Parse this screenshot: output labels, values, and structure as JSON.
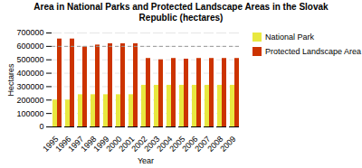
{
  "chart_data": {
    "type": "bar",
    "title": "Area in National Parks and Protected Landscape Areas in the Slovak\nRepublic (hectares)",
    "xlabel": "Year",
    "ylabel": "Hectares",
    "categories": [
      "1995",
      "1996",
      "1997",
      "1998",
      "1999",
      "2000",
      "2001",
      "2002",
      "2003",
      "2004",
      "2005",
      "2006",
      "2007",
      "2008",
      "2009"
    ],
    "series": [
      {
        "name": "National Park",
        "color": "#E8E840",
        "values": [
          200000,
          200000,
          240000,
          240000,
          240000,
          240000,
          240000,
          310000,
          310000,
          310000,
          310000,
          310000,
          310000,
          310000,
          310000
        ]
      },
      {
        "name": "Protected Landscape Area",
        "color": "#CC3300",
        "values": [
          655000,
          655000,
          595000,
          610000,
          620000,
          620000,
          620000,
          510000,
          500000,
          510000,
          505000,
          510000,
          510000,
          510000,
          510000
        ]
      }
    ],
    "ylim": [
      0,
      700000
    ],
    "yticks": [
      0,
      100000,
      200000,
      300000,
      400000,
      500000,
      600000,
      700000
    ],
    "grid": true,
    "legend": "right",
    "hlines": [
      600000
    ]
  }
}
